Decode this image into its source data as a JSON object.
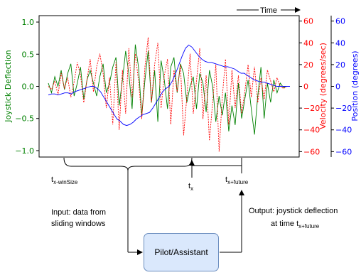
{
  "time_label": "Time",
  "chart_data": {
    "type": "line",
    "left_axis": {
      "label": "Joystick Deflection",
      "color": "#008000",
      "ticks": [
        "1.0",
        "0.5",
        "0.0",
        "−0.5",
        "−1.0"
      ],
      "ylim": [
        -1.1,
        1.1
      ]
    },
    "right_axis_1": {
      "label": "Velocity (degrees/sec)",
      "color": "#ff0000",
      "ticks": [
        "60",
        "40",
        "20",
        "0",
        "−20",
        "−40",
        "−60"
      ],
      "ylim": [
        -65,
        65
      ]
    },
    "right_axis_2": {
      "label": "Position (degrees)",
      "color": "#0000ff",
      "ticks": [
        "60",
        "40",
        "20",
        "0",
        "−20",
        "−40",
        "−60"
      ],
      "ylim": [
        -65,
        65
      ]
    },
    "grid": false,
    "series": [
      {
        "axis": "left",
        "color": "#008000",
        "style": "solid",
        "values": [
          0.05,
          -0.1,
          0.15,
          0.0,
          0.25,
          -0.05,
          0.2,
          0.35,
          -0.15,
          0.05,
          0.3,
          -0.2,
          0.1,
          0.25,
          0.05,
          -0.15,
          0.15,
          0.35,
          -0.1,
          0.05,
          0.3,
          0.45,
          -0.3,
          0.1,
          0.55,
          0.2,
          -0.35,
          0.65,
          0.3,
          -0.45,
          0.1,
          0.55,
          -0.25,
          0.25,
          -0.55,
          0.4,
          0.1,
          -0.35,
          0.3,
          0.45,
          -0.1,
          0.35,
          0.2,
          -0.25,
          0.0,
          0.15,
          -0.35,
          0.2,
          0.05,
          -0.4,
          0.25,
          0.0,
          -0.55,
          -0.15,
          -0.45,
          -0.1,
          -0.7,
          -0.3,
          -0.6,
          0.05,
          -0.5,
          -0.2,
          0.1,
          -0.35,
          -0.75,
          -0.15,
          0.3,
          -0.5,
          0.05,
          -0.25,
          0.1,
          -0.1,
          0.05,
          -0.02,
          0.0,
          0.0
        ]
      },
      {
        "axis": "right",
        "color": "#ff0000",
        "style": "dashed",
        "values": [
          0,
          -3,
          5,
          -8,
          12,
          -2,
          8,
          -10,
          4,
          22,
          10,
          -15,
          6,
          25,
          -5,
          18,
          30,
          12,
          -20,
          8,
          -35,
          22,
          -40,
          15,
          -25,
          35,
          -10,
          30,
          5,
          -30,
          18,
          45,
          -15,
          20,
          40,
          -20,
          10,
          25,
          -35,
          15,
          -5,
          20,
          -45,
          -10,
          30,
          -25,
          5,
          35,
          -30,
          10,
          -50,
          -15,
          20,
          -60,
          -10,
          25,
          -35,
          15,
          -20,
          10,
          -25,
          -5,
          20,
          -10,
          18,
          -15,
          8,
          -12,
          15,
          5,
          -5,
          8,
          0,
          -2,
          0,
          0
        ]
      },
      {
        "axis": "right",
        "color": "#0000ff",
        "style": "solid",
        "values": [
          -8,
          -7,
          -7,
          -8,
          -7,
          -6,
          -6,
          -7,
          -5,
          -4,
          -3,
          -2,
          -1,
          0,
          0,
          -2,
          -5,
          -10,
          -15,
          -20,
          -25,
          -30,
          -32,
          -35,
          -36,
          -35,
          -33,
          -30,
          -28,
          -26,
          -25,
          -24,
          -20,
          -15,
          -10,
          -5,
          -2,
          0,
          5,
          12,
          20,
          28,
          35,
          38,
          36,
          32,
          28,
          25,
          23,
          22,
          22,
          21,
          20,
          19,
          18,
          18,
          17,
          16,
          14,
          12,
          12,
          10,
          8,
          6,
          5,
          4,
          4,
          3,
          2,
          1,
          0,
          0,
          0,
          0,
          0
        ]
      }
    ]
  },
  "annotations": {
    "t_winsize": "t",
    "t_winsize_sub": "x-winSize",
    "t_x": "t",
    "t_x_sub": "x",
    "t_future": "t",
    "t_future_sub": "x+future",
    "input_line1": "Input: data from",
    "input_line2": "sliding windows",
    "output_line1": "Output: joystick deflection",
    "output_line2": "at time t",
    "output_line2_sub": "x+future",
    "box_label": "Pilot/Assistant"
  }
}
